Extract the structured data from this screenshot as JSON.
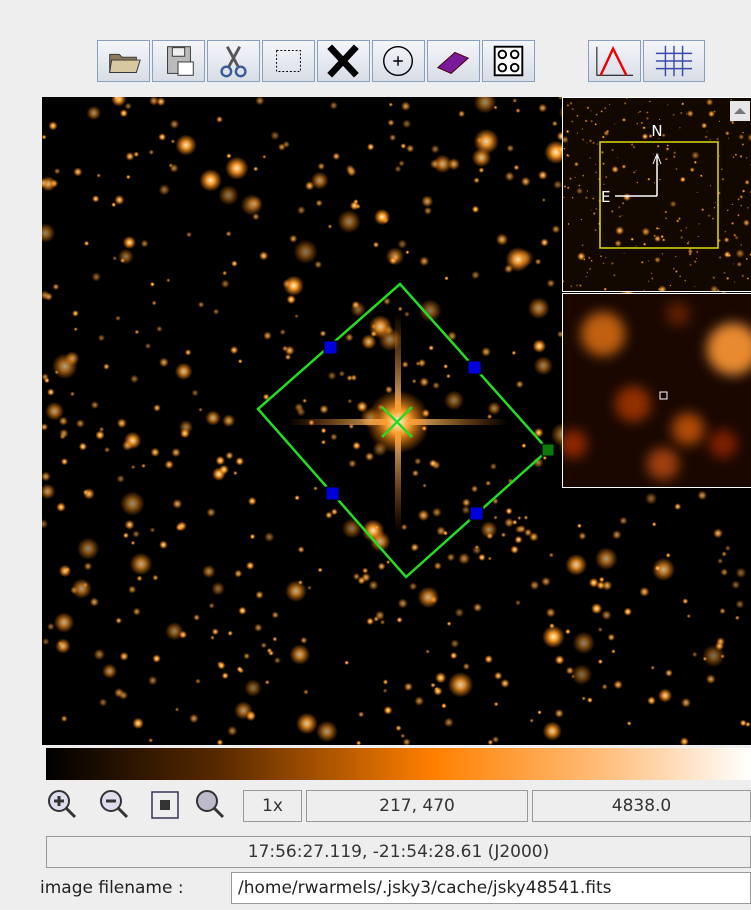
{
  "image_view": {
    "compass": {
      "north": "N",
      "east": "E"
    }
  },
  "status": {
    "zoom": "1x",
    "pixel": "217, 470",
    "value": "4838.0",
    "world_coords": "17:56:27.119, -21:54:28.61 (J2000)",
    "filename_label": "image filename :",
    "filename": "/home/rwarmels/.jsky3/cache/jsky48541.fits"
  }
}
